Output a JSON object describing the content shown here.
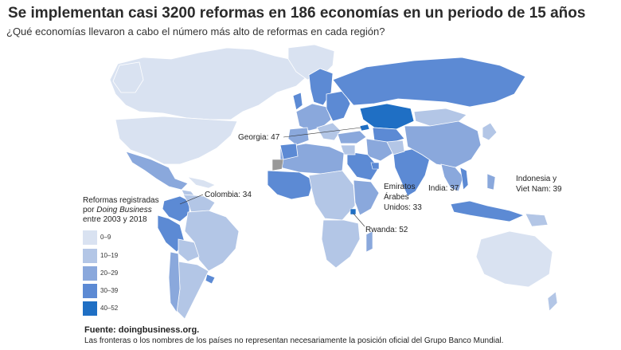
{
  "title": "Se implementan casi 3200 reformas en 186 economías en un periodo de 15 años",
  "subtitle": "¿Qué economías llevaron a cabo el número más alto de reformas en cada región?",
  "colors": {
    "band0": "#d9e2f1",
    "band1": "#b3c6e6",
    "band2": "#8aa8dc",
    "band3": "#5c8ad4",
    "band4": "#1f6fc4",
    "border": "#ffffff"
  },
  "callouts": {
    "georgia": "Georgia: 47",
    "colombia": "Colombia: 34",
    "uae_line1": "Emiratos",
    "uae_line2": "Árabes",
    "uae_line3": "Unidos: 33",
    "india": "India: 37",
    "indonesia_line1": "Indonesia y",
    "indonesia_line2": "Viet Nam: 39",
    "rwanda": "Rwanda: 52"
  },
  "legend": {
    "title_line1": "Reformas registradas",
    "title_prefix": "por ",
    "title_italic": "Doing Business",
    "title_line3": "entre 2003 y 2018",
    "items": [
      {
        "label": "0–9",
        "color": "#d9e2f1"
      },
      {
        "label": "10–19",
        "color": "#b3c6e6"
      },
      {
        "label": "20–29",
        "color": "#8aa8dc"
      },
      {
        "label": "30–39",
        "color": "#5c8ad4"
      },
      {
        "label": "40–52",
        "color": "#1f6fc4"
      }
    ]
  },
  "footer": {
    "source": "Fuente: doingbusiness.org.",
    "note": "Las fronteras o los nombres de los países no representan necesariamente la posición oficial del Grupo Banco Mundial."
  }
}
